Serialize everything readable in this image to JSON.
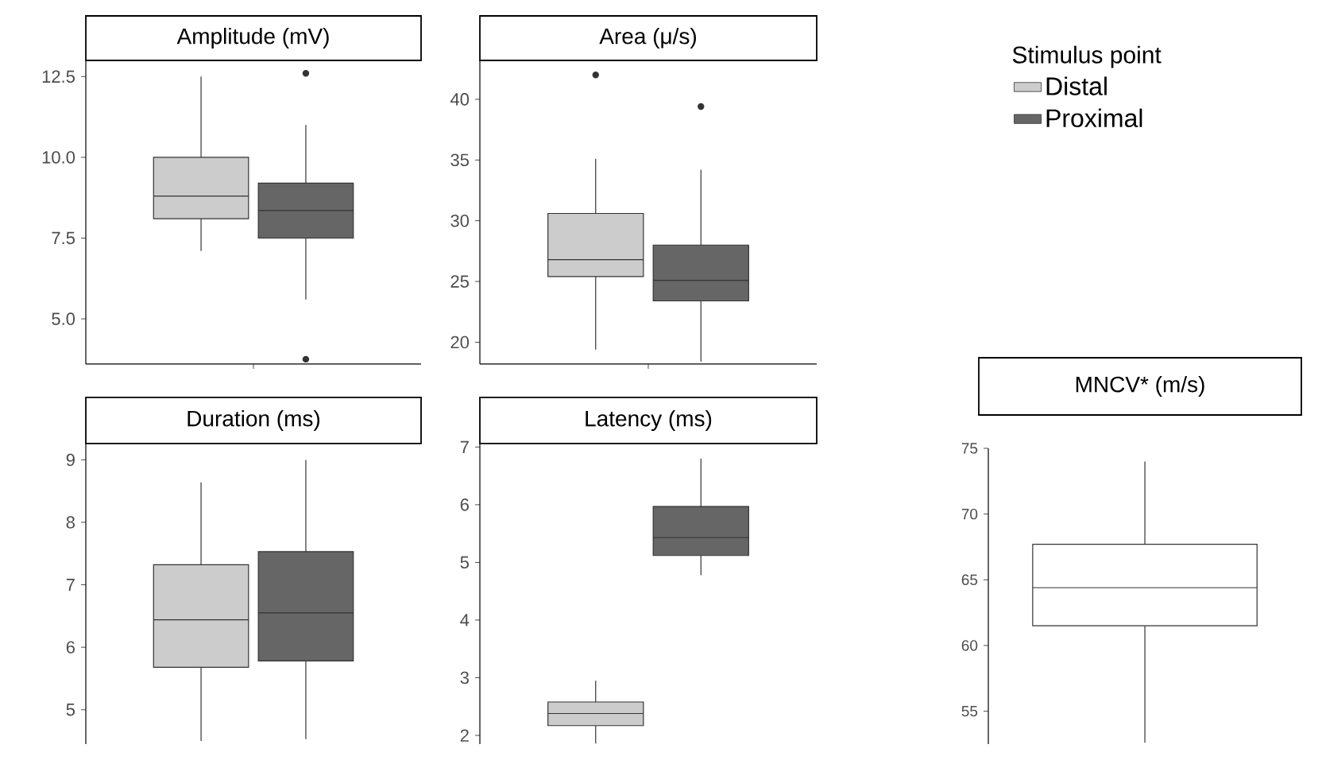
{
  "chart_data": [
    {
      "type": "box",
      "title": "Amplitude (mV)",
      "categories": [
        null
      ],
      "ylim": [
        3.6,
        13.0
      ],
      "yticks": [
        {
          "value": 5,
          "label": "5.0"
        },
        {
          "value": 7.5,
          "label": "7.5"
        },
        {
          "value": 10,
          "label": "10.0"
        },
        {
          "value": 12.5,
          "label": "12.5"
        }
      ],
      "tick_labels": "y",
      "series": [
        {
          "color": "#cccccc",
          "boxes": [
            {
              "low": 7.1,
              "q1": 8.1,
              "median": 8.8,
              "q3": 10.0,
              "high": 12.5
            }
          ]
        },
        {
          "color": "#666666",
          "boxes": [
            {
              "low": 5.6,
              "q1": 7.5,
              "median": 8.35,
              "q3": 9.2,
              "high": 11.0,
              "outliers": [
                12.6,
                3.75
              ]
            }
          ]
        }
      ]
    },
    {
      "type": "box",
      "title": "Area (μ/s)",
      "categories": [
        null
      ],
      "ylim": [
        18.2,
        43.2
      ],
      "yticks": [
        20,
        25,
        30,
        35,
        40
      ],
      "tick_labels": "y",
      "legend": "top right",
      "legend_title": "Stimulus point",
      "series": [
        {
          "name": "Distal",
          "color": "#cccccc",
          "boxes": [
            {
              "low": 19.4,
              "q1": 25.4,
              "median": 26.8,
              "q3": 30.6,
              "high": 35.1,
              "outliers": [
                42.0
              ]
            }
          ]
        },
        {
          "name": "Proximal",
          "color": "#666666",
          "boxes": [
            {
              "low": 18.4,
              "q1": 23.4,
              "median": 25.1,
              "q3": 28.0,
              "high": 34.2,
              "outliers": [
                39.4
              ]
            }
          ]
        }
      ]
    },
    {
      "type": "box",
      "title": "Duration (ms)",
      "categories": [
        null
      ],
      "ylim": [
        4.45,
        9.26
      ],
      "yticks": [
        5,
        6,
        7,
        8,
        9
      ],
      "tick_labels": "y",
      "series": [
        {
          "color": "#cccccc",
          "boxes": [
            {
              "low": 4.5,
              "q1": 5.68,
              "median": 6.44,
              "q3": 7.32,
              "high": 8.64
            }
          ]
        },
        {
          "color": "#666666",
          "boxes": [
            {
              "low": 4.53,
              "q1": 5.78,
              "median": 6.55,
              "q3": 7.53,
              "high": 9.0
            }
          ]
        }
      ]
    },
    {
      "type": "box",
      "title": "Latency (ms)",
      "categories": [
        null
      ],
      "ylim": [
        1.85,
        7.06
      ],
      "yticks": [
        2,
        3,
        4,
        5,
        6,
        7
      ],
      "tick_labels": "y",
      "series": [
        {
          "color": "#cccccc",
          "boxes": [
            {
              "low": 1.86,
              "q1": 2.17,
              "median": 2.38,
              "q3": 2.58,
              "high": 2.95
            }
          ]
        },
        {
          "color": "#666666",
          "boxes": [
            {
              "low": 4.78,
              "q1": 5.12,
              "median": 5.43,
              "q3": 5.97,
              "high": 6.8
            }
          ]
        }
      ]
    },
    {
      "type": "box",
      "title": "MNCV* (m/s)",
      "categories": [
        null
      ],
      "ylim": [
        52.5,
        75
      ],
      "yticks": [
        55,
        60,
        65,
        70,
        75
      ],
      "tick_labels": "y",
      "series": [
        {
          "color": "#ffffff",
          "boxes": [
            {
              "low": 52.6,
              "q1": 61.5,
              "median": 64.4,
              "q3": 67.7,
              "high": 74.0
            }
          ]
        }
      ]
    }
  ]
}
